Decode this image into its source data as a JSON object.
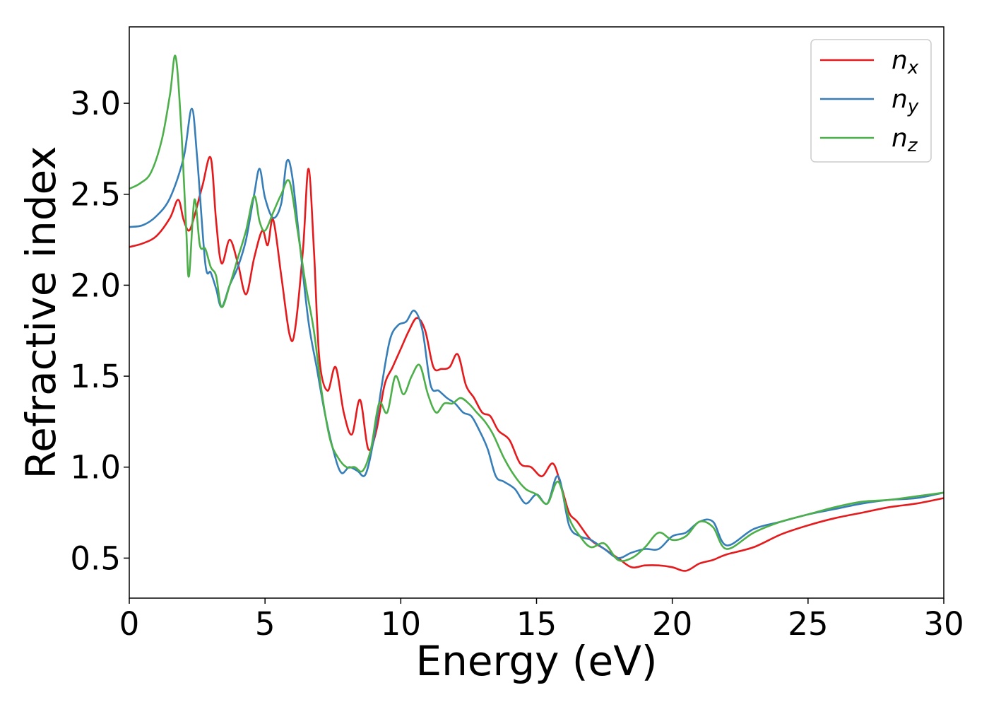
{
  "chart_data": {
    "type": "line",
    "title": "",
    "xlabel": "Energy (eV)",
    "ylabel": "Refractive index",
    "xlim": [
      0,
      30
    ],
    "ylim": [
      0.28,
      3.42
    ],
    "xticks": [
      0,
      5,
      10,
      15,
      20,
      25,
      30
    ],
    "xtick_labels": [
      "0",
      "5",
      "10",
      "15",
      "20",
      "25",
      "30"
    ],
    "yticks": [
      0.5,
      1.0,
      1.5,
      2.0,
      2.5,
      3.0
    ],
    "ytick_labels": [
      "0.5",
      "1.0",
      "1.5",
      "2.0",
      "2.5",
      "3.0"
    ],
    "grid": false,
    "legend_position": "top-right",
    "series": [
      {
        "name": "n",
        "subscript": "x",
        "color": "#e41a1c",
        "x": [
          0,
          0.5,
          1.0,
          1.5,
          1.8,
          2.0,
          2.2,
          2.4,
          2.7,
          3.0,
          3.2,
          3.4,
          3.7,
          4.0,
          4.3,
          4.6,
          4.9,
          5.1,
          5.3,
          5.6,
          5.9,
          6.1,
          6.4,
          6.6,
          6.8,
          7.0,
          7.3,
          7.6,
          7.9,
          8.2,
          8.5,
          8.8,
          9.1,
          9.4,
          9.7,
          10.0,
          10.3,
          10.6,
          10.9,
          11.2,
          11.5,
          11.8,
          12.1,
          12.4,
          12.7,
          13.0,
          13.3,
          13.6,
          14.0,
          14.4,
          14.8,
          15.2,
          15.6,
          15.9,
          16.2,
          16.5,
          17.0,
          17.5,
          18.0,
          18.5,
          19.0,
          19.5,
          20.0,
          20.5,
          21.0,
          21.5,
          22.0,
          23.0,
          24.0,
          25.0,
          26.0,
          27.0,
          28.0,
          29.0,
          30.0
        ],
        "values": [
          2.21,
          2.23,
          2.27,
          2.37,
          2.47,
          2.36,
          2.3,
          2.38,
          2.55,
          2.7,
          2.35,
          2.12,
          2.25,
          2.12,
          1.95,
          2.15,
          2.3,
          2.22,
          2.36,
          2.05,
          1.73,
          1.75,
          2.2,
          2.64,
          2.2,
          1.6,
          1.42,
          1.55,
          1.3,
          1.18,
          1.37,
          1.1,
          1.2,
          1.45,
          1.55,
          1.65,
          1.75,
          1.82,
          1.75,
          1.55,
          1.54,
          1.55,
          1.62,
          1.45,
          1.38,
          1.3,
          1.28,
          1.2,
          1.15,
          1.02,
          1.0,
          0.95,
          1.02,
          0.9,
          0.75,
          0.7,
          0.6,
          0.55,
          0.5,
          0.45,
          0.46,
          0.46,
          0.45,
          0.43,
          0.47,
          0.49,
          0.52,
          0.56,
          0.63,
          0.68,
          0.72,
          0.75,
          0.78,
          0.8,
          0.83
        ]
      },
      {
        "name": "n",
        "subscript": "y",
        "color": "#377eb8",
        "x": [
          0,
          0.5,
          1.0,
          1.5,
          2.0,
          2.3,
          2.5,
          2.8,
          3.0,
          3.2,
          3.4,
          3.7,
          4.0,
          4.3,
          4.6,
          4.8,
          5.0,
          5.3,
          5.6,
          5.8,
          6.0,
          6.3,
          6.6,
          6.9,
          7.2,
          7.5,
          7.8,
          8.1,
          8.4,
          8.7,
          9.0,
          9.3,
          9.6,
          9.9,
          10.2,
          10.5,
          10.8,
          11.1,
          11.4,
          11.7,
          12.0,
          12.3,
          12.6,
          12.9,
          13.2,
          13.5,
          13.8,
          14.2,
          14.6,
          15.0,
          15.4,
          15.8,
          16.2,
          16.6,
          17.0,
          17.5,
          18.0,
          18.5,
          19.0,
          19.5,
          20.0,
          20.5,
          21.0,
          21.5,
          22.0,
          23.0,
          24.0,
          25.0,
          26.0,
          27.0,
          28.0,
          29.0,
          30.0
        ],
        "values": [
          2.32,
          2.33,
          2.38,
          2.48,
          2.7,
          2.97,
          2.7,
          2.12,
          2.07,
          1.98,
          1.88,
          2.0,
          2.1,
          2.25,
          2.5,
          2.64,
          2.48,
          2.37,
          2.45,
          2.68,
          2.6,
          2.2,
          1.8,
          1.55,
          1.3,
          1.1,
          0.97,
          1.0,
          0.98,
          0.96,
          1.15,
          1.45,
          1.7,
          1.78,
          1.8,
          1.86,
          1.75,
          1.45,
          1.42,
          1.38,
          1.35,
          1.3,
          1.28,
          1.2,
          1.1,
          0.95,
          0.92,
          0.88,
          0.8,
          0.85,
          0.8,
          0.95,
          0.68,
          0.62,
          0.6,
          0.55,
          0.5,
          0.53,
          0.55,
          0.55,
          0.62,
          0.64,
          0.7,
          0.7,
          0.57,
          0.66,
          0.7,
          0.74,
          0.77,
          0.8,
          0.82,
          0.83,
          0.86
        ]
      },
      {
        "name": "n",
        "subscript": "z",
        "color": "#4daf4a",
        "x": [
          0,
          0.4,
          0.8,
          1.2,
          1.5,
          1.7,
          1.9,
          2.1,
          2.2,
          2.4,
          2.6,
          2.8,
          3.0,
          3.2,
          3.4,
          3.7,
          4.0,
          4.3,
          4.6,
          4.8,
          5.0,
          5.3,
          5.6,
          5.9,
          6.2,
          6.5,
          6.8,
          7.1,
          7.4,
          7.7,
          8.0,
          8.3,
          8.6,
          8.9,
          9.2,
          9.5,
          9.8,
          10.1,
          10.4,
          10.7,
          11.0,
          11.3,
          11.6,
          11.9,
          12.2,
          12.5,
          12.8,
          13.1,
          13.4,
          13.8,
          14.2,
          14.6,
          15.0,
          15.4,
          15.8,
          16.2,
          16.6,
          17.0,
          17.5,
          18.0,
          18.5,
          19.0,
          19.5,
          20.0,
          20.5,
          21.0,
          21.5,
          22.0,
          23.0,
          24.0,
          25.0,
          26.0,
          27.0,
          28.0,
          29.0,
          30.0
        ],
        "values": [
          2.53,
          2.56,
          2.62,
          2.8,
          3.05,
          3.26,
          2.9,
          2.3,
          2.05,
          2.47,
          2.22,
          2.2,
          2.1,
          2.05,
          1.88,
          2.0,
          2.15,
          2.3,
          2.49,
          2.35,
          2.3,
          2.4,
          2.5,
          2.57,
          2.3,
          2.0,
          1.75,
          1.4,
          1.15,
          1.05,
          1.0,
          1.0,
          0.98,
          1.1,
          1.35,
          1.3,
          1.5,
          1.4,
          1.5,
          1.56,
          1.4,
          1.3,
          1.35,
          1.35,
          1.38,
          1.35,
          1.3,
          1.25,
          1.18,
          1.05,
          0.95,
          0.88,
          0.85,
          0.8,
          0.92,
          0.72,
          0.62,
          0.56,
          0.58,
          0.49,
          0.5,
          0.56,
          0.64,
          0.6,
          0.62,
          0.7,
          0.67,
          0.55,
          0.64,
          0.7,
          0.74,
          0.78,
          0.81,
          0.82,
          0.84,
          0.86
        ]
      }
    ]
  }
}
